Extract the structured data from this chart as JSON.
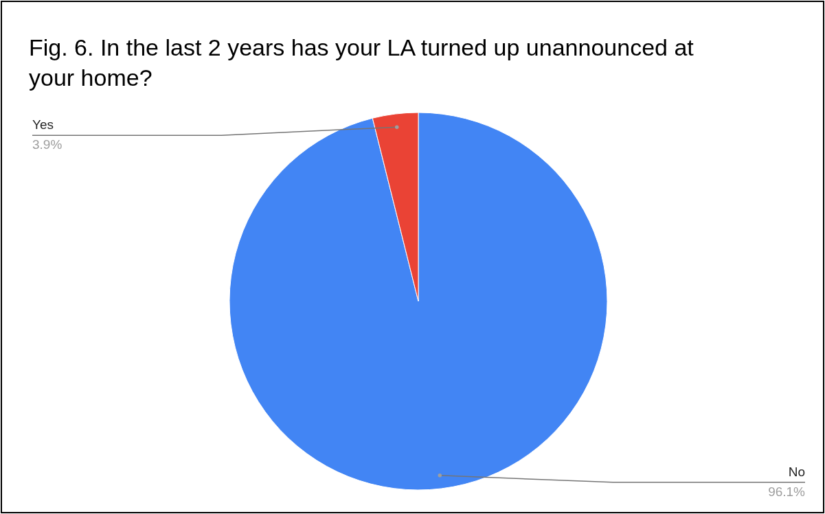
{
  "chart_data": {
    "type": "pie",
    "title": "Fig. 6. In the last 2 years has your LA turned up unannounced at your home?",
    "categories": [
      "No",
      "Yes"
    ],
    "values": [
      96.1,
      3.9
    ],
    "colors": [
      "#4285f4",
      "#ea4335"
    ],
    "value_labels": [
      "96.1%",
      "3.9%"
    ]
  }
}
